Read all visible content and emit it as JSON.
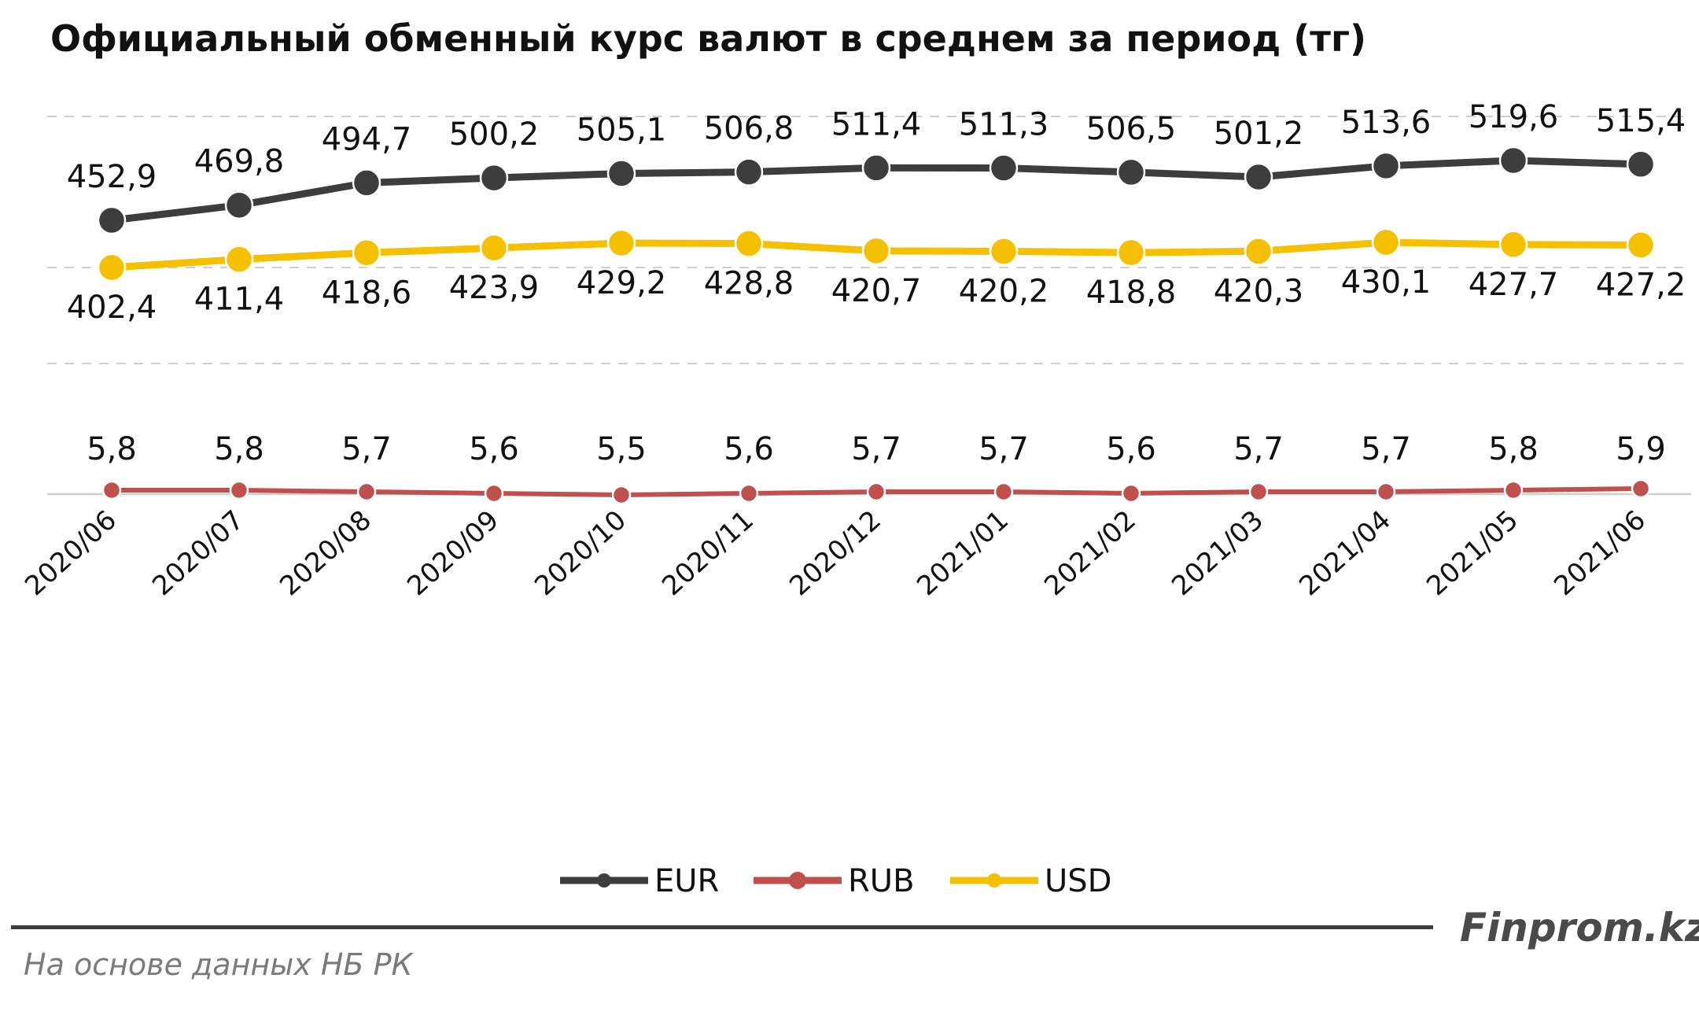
{
  "chart_data": {
    "type": "line",
    "title": "Официальный обменный курс валют в среднем за период (тг)",
    "categories": [
      "2020/06",
      "2020/07",
      "2020/08",
      "2020/09",
      "2020/10",
      "2020/11",
      "2020/12",
      "2021/01",
      "2021/02",
      "2021/03",
      "2021/04",
      "2021/05",
      "2021/06"
    ],
    "series": [
      {
        "name": "EUR",
        "color": "#3d3d3d",
        "values": [
          452.9,
          469.8,
          494.7,
          500.2,
          505.1,
          506.8,
          511.4,
          511.3,
          506.5,
          501.2,
          513.6,
          519.6,
          515.4
        ],
        "labels": [
          "452,9",
          "469,8",
          "494,7",
          "500,2",
          "505,1",
          "506,8",
          "511,4",
          "511,3",
          "506,5",
          "501,2",
          "513,6",
          "519,6",
          "515,4"
        ]
      },
      {
        "name": "RUB",
        "color": "#c0504d",
        "values": [
          5.8,
          5.8,
          5.7,
          5.6,
          5.5,
          5.6,
          5.7,
          5.7,
          5.6,
          5.7,
          5.7,
          5.8,
          5.9
        ],
        "labels": [
          "5,8",
          "5,8",
          "5,7",
          "5,6",
          "5,5",
          "5,6",
          "5,7",
          "5,7",
          "5,6",
          "5,7",
          "5,7",
          "5,8",
          "5,9"
        ]
      },
      {
        "name": "USD",
        "color": "#f5c000",
        "values": [
          402.4,
          411.4,
          418.6,
          423.9,
          429.2,
          428.8,
          420.7,
          420.2,
          418.8,
          420.3,
          430.1,
          427.7,
          427.2
        ],
        "labels": [
          "402,4",
          "411,4",
          "418,6",
          "423,9",
          "429,2",
          "428,8",
          "420,7",
          "420,2",
          "418,8",
          "420,3",
          "430,1",
          "427,7",
          "427,2"
        ]
      }
    ],
    "legend_position": "bottom",
    "grid": true,
    "value_label_position": "EUR above points, USD below points, RUB above points"
  },
  "source_note": "На основе данных НБ РК",
  "brand": "Finprom.kz"
}
